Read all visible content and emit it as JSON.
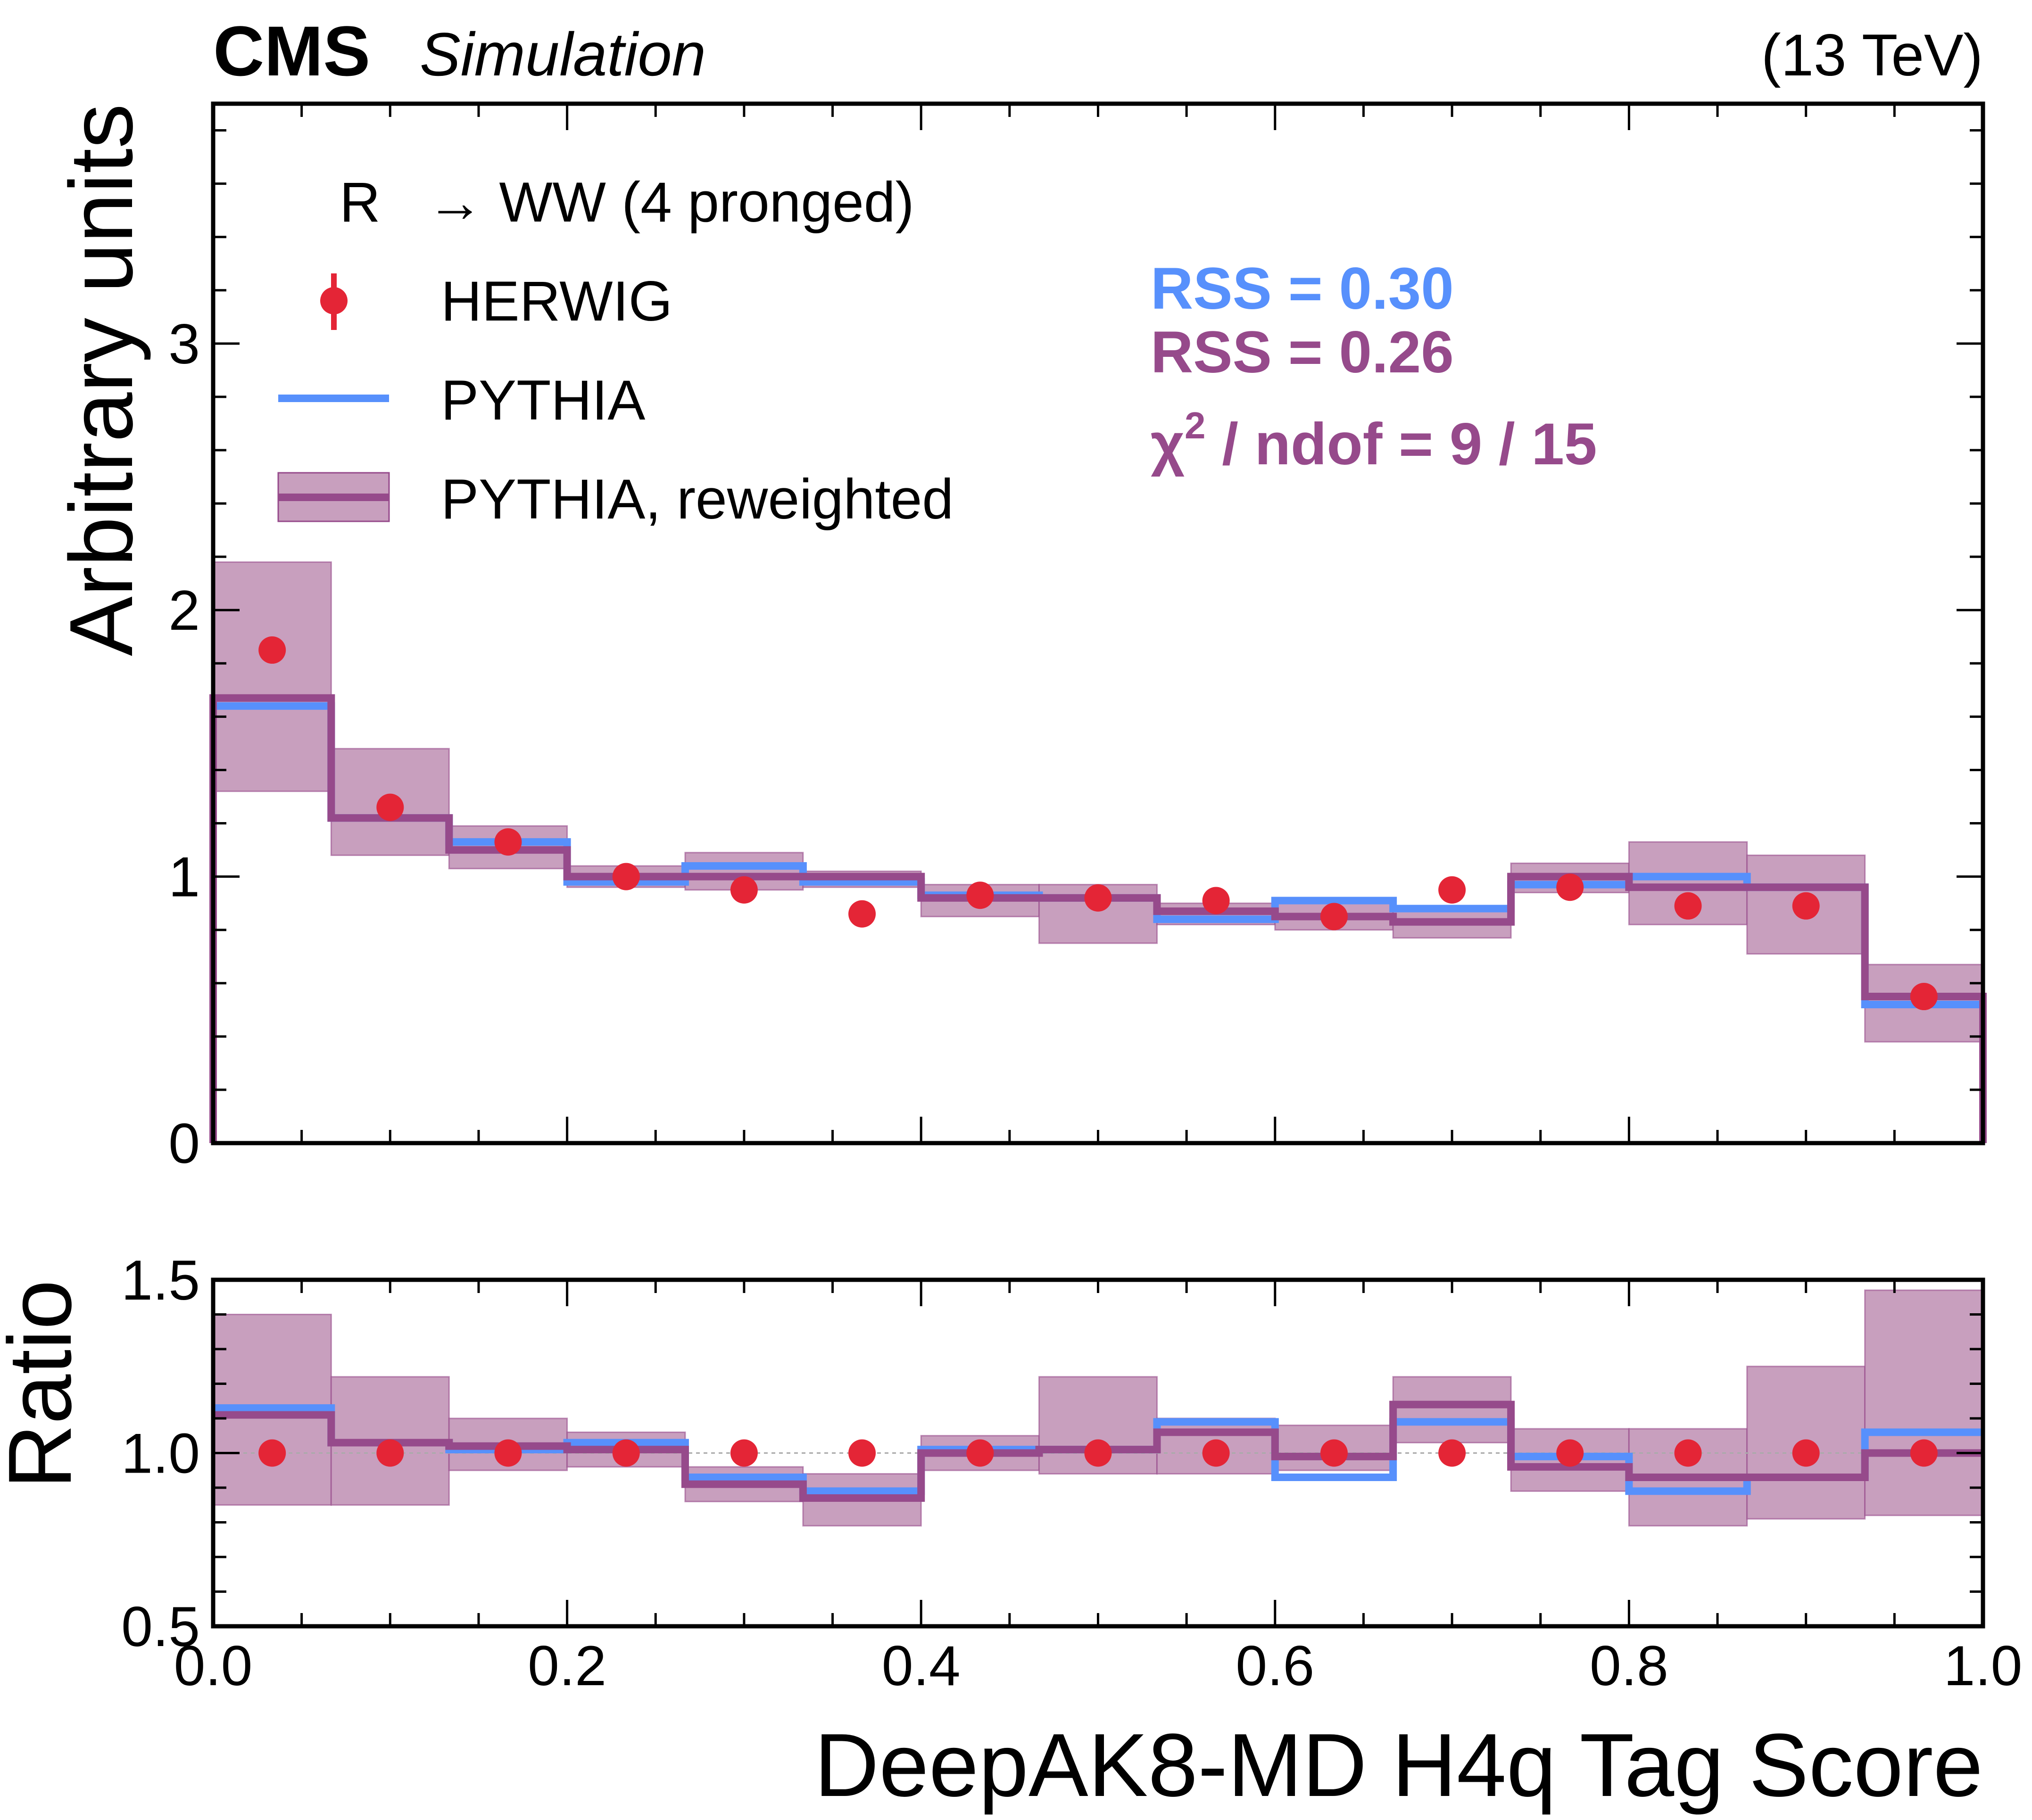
{
  "header": {
    "experiment": "CMS",
    "status": "Simulation",
    "energy": "(13 TeV)"
  },
  "colors": {
    "herwig": "#e42536",
    "pythia": "#5790fc",
    "reweighted": "#964a8b",
    "band_fill": "#c89fbe"
  },
  "legend": {
    "title_prefix": "R",
    "title_rest": "→ WW (4 pronged)",
    "herwig": "HERWIG",
    "pythia": "PYTHIA",
    "reweighted": "PYTHIA, reweighted"
  },
  "stats": {
    "rss_pythia": "RSS = 0.30",
    "rss_reweighted": "RSS = 0.26",
    "chi2_symbol": "χ",
    "chi2_sup": "2",
    "chi2_rest": " / ndof = 9 / 15"
  },
  "chart_data": [
    {
      "type": "histogram",
      "panel": "main",
      "xlabel": "DeepAK8-MD H4q Tag Score",
      "ylabel": "Arbitrary units",
      "xlim": [
        0,
        1
      ],
      "ylim": [
        0,
        3.9
      ],
      "y_ticks": [
        0,
        1,
        2,
        3
      ],
      "y_tick_labels": [
        "0",
        "1",
        "2",
        "3"
      ],
      "bin_edges": [
        0,
        0.0667,
        0.1333,
        0.2,
        0.2667,
        0.3333,
        0.4,
        0.4667,
        0.5333,
        0.6,
        0.6667,
        0.7333,
        0.8,
        0.8667,
        0.9333,
        1.0
      ],
      "series": [
        {
          "name": "HERWIG",
          "style": "points",
          "values": [
            1.85,
            1.26,
            1.13,
            1.0,
            0.95,
            0.86,
            0.93,
            0.92,
            0.91,
            0.85,
            0.95,
            0.96,
            0.89,
            0.89,
            0.55
          ]
        },
        {
          "name": "PYTHIA",
          "style": "step",
          "values": [
            1.64,
            1.22,
            1.13,
            0.98,
            1.04,
            0.98,
            0.93,
            0.92,
            0.84,
            0.91,
            0.88,
            0.97,
            1.0,
            0.96,
            0.52
          ]
        },
        {
          "name": "PYTHIA, reweighted",
          "style": "step",
          "values": [
            1.67,
            1.22,
            1.1,
            1.0,
            1.0,
            1.0,
            0.92,
            0.92,
            0.87,
            0.85,
            0.83,
            1.0,
            0.96,
            0.96,
            0.55
          ]
        }
      ],
      "band": {
        "name": "PYTHIA, reweighted uncertainty",
        "low": [
          1.32,
          1.08,
          1.03,
          0.96,
          0.95,
          0.96,
          0.85,
          0.75,
          0.82,
          0.8,
          0.77,
          0.94,
          0.82,
          0.71,
          0.38
        ],
        "high": [
          2.18,
          1.48,
          1.19,
          1.04,
          1.09,
          1.02,
          0.97,
          0.97,
          0.9,
          0.9,
          0.87,
          1.05,
          1.13,
          1.08,
          0.67
        ]
      }
    },
    {
      "type": "histogram",
      "panel": "ratio",
      "xlabel": "DeepAK8-MD H4q Tag Score",
      "ylabel": "Ratio",
      "xlim": [
        0,
        1
      ],
      "ylim": [
        0.5,
        1.5
      ],
      "x_ticks": [
        0.0,
        0.2,
        0.4,
        0.6,
        0.8,
        1.0
      ],
      "x_tick_labels": [
        "0.0",
        "0.2",
        "0.4",
        "0.6",
        "0.8",
        "1.0"
      ],
      "y_ticks": [
        0.5,
        1.0,
        1.5
      ],
      "y_tick_labels": [
        "0.5",
        "1.0",
        "1.5"
      ],
      "reference_line": 1.0,
      "bin_edges": [
        0,
        0.0667,
        0.1333,
        0.2,
        0.2667,
        0.3333,
        0.4,
        0.4667,
        0.5333,
        0.6,
        0.6667,
        0.7333,
        0.8,
        0.8667,
        0.9333,
        1.0
      ],
      "series": [
        {
          "name": "HERWIG",
          "style": "points",
          "values": [
            1.0,
            1.0,
            1.0,
            1.0,
            1.0,
            1.0,
            1.0,
            1.0,
            1.0,
            1.0,
            1.0,
            1.0,
            1.0,
            1.0,
            1.0
          ]
        },
        {
          "name": "PYTHIA",
          "style": "step",
          "values": [
            1.13,
            1.03,
            1.01,
            1.03,
            0.93,
            0.89,
            1.01,
            1.01,
            1.09,
            0.93,
            1.09,
            0.99,
            0.89,
            0.93,
            1.06
          ]
        },
        {
          "name": "PYTHIA, reweighted",
          "style": "step",
          "values": [
            1.11,
            1.03,
            1.02,
            1.01,
            0.91,
            0.87,
            1.0,
            1.01,
            1.06,
            0.99,
            1.14,
            0.96,
            0.93,
            0.93,
            1.0
          ]
        }
      ],
      "band": {
        "name": "PYTHIA, reweighted uncertainty",
        "low": [
          0.85,
          0.85,
          0.95,
          0.96,
          0.86,
          0.79,
          0.95,
          0.94,
          0.94,
          0.95,
          1.03,
          0.89,
          0.79,
          0.81,
          0.82
        ],
        "high": [
          1.4,
          1.22,
          1.1,
          1.06,
          0.96,
          0.94,
          1.05,
          1.22,
          1.1,
          1.08,
          1.22,
          1.07,
          1.07,
          1.25,
          1.47
        ]
      }
    }
  ]
}
